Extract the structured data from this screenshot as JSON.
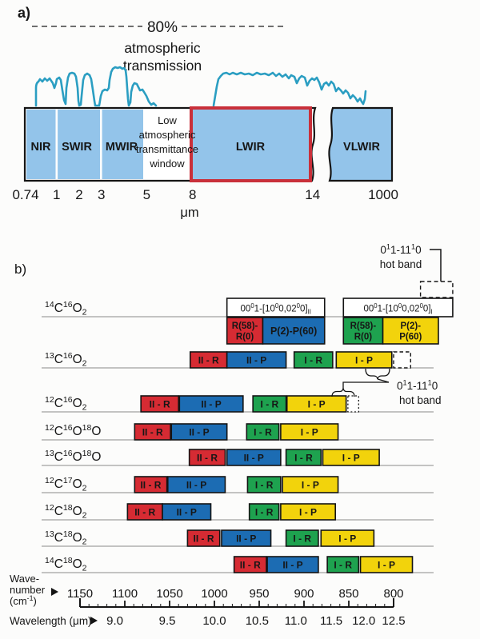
{
  "panel_a": {
    "label": "a)",
    "transmission_note": {
      "percent": "80%",
      "line1": "atmospheric",
      "line2": "transmission"
    },
    "window_note_lines": [
      "Low",
      "atmospheric",
      "transmittance",
      "window"
    ],
    "bands": [
      {
        "name": "NIR",
        "from_um": "0.74",
        "to_um": "1"
      },
      {
        "name": "SWIR",
        "from_um": "1",
        "to_um": "3"
      },
      {
        "name": "MWIR",
        "from_um": "3",
        "to_um": "5"
      },
      {
        "name": "LWIR",
        "from_um": "8",
        "to_um": "14",
        "highlighted": true
      },
      {
        "name": "VLWIR",
        "from_um": "14",
        "to_um": "1000"
      }
    ],
    "low_window_range_um": [
      "5",
      "8"
    ],
    "axis": {
      "ticks": [
        "0.74",
        "1",
        "2",
        "3",
        "5",
        "8",
        "14",
        "1000"
      ],
      "unit": "μm"
    },
    "colors": {
      "band_fill": "#93c4ea",
      "highlight_border": "#c9303a",
      "curve": "#2b9ec2"
    }
  },
  "panel_b": {
    "label": "b)"
  },
  "chart_data": {
    "type": "bar",
    "x_axis": {
      "label_lines": [
        "Wave-",
        "number",
        "(cm^{-1})"
      ],
      "range": [
        1150,
        800
      ],
      "major_ticks": [
        1150,
        1100,
        1050,
        1000,
        950,
        900,
        850,
        800
      ],
      "minor_tick_step": 10
    },
    "x_axis2": {
      "label": "Wavelength (μm)",
      "ticks": [
        "9.0",
        "9.5",
        "10.0",
        "10.5",
        "11.0",
        "11.5",
        "12.0",
        "12.5"
      ]
    },
    "branch_colors": {
      "II-R": "#d62b33",
      "II-P": "#1c6cb3",
      "I-R": "#1ea24f",
      "I-P": "#f2d30c"
    },
    "rows": [
      {
        "formula": "^{14}C^{16}O_{2}",
        "header_boxes": [
          {
            "label": "00^{0}1-[10^{0}0,02^{0}0]_{II}",
            "from": 986,
            "to": 877
          },
          {
            "label": "00^{0}1-[10^{0}0,02^{0}0]_{I}",
            "from": 856,
            "to": 734
          }
        ],
        "bands": [
          {
            "branch": "II-R",
            "lines": [
              "R(58)-",
              "R(0)"
            ],
            "from": 986,
            "to": 946
          },
          {
            "branch": "II-P",
            "lines": [
              "P(2)-P(60)"
            ],
            "from": 946,
            "to": 877
          },
          {
            "branch": "I-R",
            "lines": [
              "R(58)-",
              "R(0)"
            ],
            "from": 856,
            "to": 812
          },
          {
            "branch": "I-P",
            "lines": [
              "P(2)-",
              "P(60)"
            ],
            "from": 812,
            "to": 750
          }
        ],
        "dashed_box": {
          "from": 770,
          "to": 734
        }
      },
      {
        "formula": "^{13}C^{16}O_{2}",
        "bands": [
          {
            "branch": "II-R",
            "lines": [
              "II - R"
            ],
            "from": 1027,
            "to": 986
          },
          {
            "branch": "II-P",
            "lines": [
              "II - P"
            ],
            "from": 986,
            "to": 920
          },
          {
            "branch": "I-R",
            "lines": [
              "I - R"
            ],
            "from": 911,
            "to": 868
          },
          {
            "branch": "I-P",
            "lines": [
              "I - P"
            ],
            "from": 864,
            "to": 802
          }
        ],
        "dashed_ext": {
          "from": 800,
          "to": 781
        }
      },
      {
        "formula": "^{12}C^{16}O_{2}",
        "bands": [
          {
            "branch": "II-R",
            "lines": [
              "II - R"
            ],
            "from": 1082,
            "to": 1040
          },
          {
            "branch": "II-P",
            "lines": [
              "II - P"
            ],
            "from": 1039,
            "to": 968
          },
          {
            "branch": "I-R",
            "lines": [
              "I - R"
            ],
            "from": 957,
            "to": 920
          },
          {
            "branch": "I-P",
            "lines": [
              "I - P"
            ],
            "from": 919,
            "to": 853
          }
        ],
        "dotted_ext": {
          "from": 851,
          "to": 839
        }
      },
      {
        "formula": "^{12}C^{16}O^{18}O",
        "bands": [
          {
            "branch": "II-R",
            "lines": [
              "II - R"
            ],
            "from": 1089,
            "to": 1049
          },
          {
            "branch": "II-P",
            "lines": [
              "II - P"
            ],
            "from": 1048,
            "to": 986
          },
          {
            "branch": "I-R",
            "lines": [
              "I - R"
            ],
            "from": 964,
            "to": 928
          },
          {
            "branch": "I-P",
            "lines": [
              "I - P"
            ],
            "from": 926,
            "to": 862
          }
        ]
      },
      {
        "formula": "^{13}C^{16}O^{18}O",
        "bands": [
          {
            "branch": "II-R",
            "lines": [
              "II - R"
            ],
            "from": 1028,
            "to": 988
          },
          {
            "branch": "II-P",
            "lines": [
              "II - P"
            ],
            "from": 986,
            "to": 926
          },
          {
            "branch": "I-R",
            "lines": [
              "I - R"
            ],
            "from": 920,
            "to": 881
          },
          {
            "branch": "I-P",
            "lines": [
              "I - P"
            ],
            "from": 879,
            "to": 816
          }
        ]
      },
      {
        "formula": "^{12}C^{17}O_{2}",
        "bands": [
          {
            "branch": "II-R",
            "lines": [
              "II - R"
            ],
            "from": 1089,
            "to": 1053
          },
          {
            "branch": "II-P",
            "lines": [
              "II - P"
            ],
            "from": 1052,
            "to": 988
          },
          {
            "branch": "I-R",
            "lines": [
              "I - R"
            ],
            "from": 963,
            "to": 926
          },
          {
            "branch": "I-P",
            "lines": [
              "I - P"
            ],
            "from": 924,
            "to": 862
          }
        ]
      },
      {
        "formula": "^{12}C^{18}O_{2}",
        "bands": [
          {
            "branch": "II-R",
            "lines": [
              "II - R"
            ],
            "from": 1097,
            "to": 1058
          },
          {
            "branch": "II-P",
            "lines": [
              "II - P"
            ],
            "from": 1058,
            "to": 1004
          },
          {
            "branch": "I-R",
            "lines": [
              "I - R"
            ],
            "from": 961,
            "to": 928
          },
          {
            "branch": "I-P",
            "lines": [
              "I - P"
            ],
            "from": 926,
            "to": 865
          }
        ]
      },
      {
        "formula": "^{13}C^{18}O_{2}",
        "bands": [
          {
            "branch": "II-R",
            "lines": [
              "II - R"
            ],
            "from": 1030,
            "to": 994
          },
          {
            "branch": "II-P",
            "lines": [
              "II - P"
            ],
            "from": 992,
            "to": 937
          },
          {
            "branch": "I-R",
            "lines": [
              "I - R"
            ],
            "from": 920,
            "to": 884
          },
          {
            "branch": "I-P",
            "lines": [
              "I - P"
            ],
            "from": 881,
            "to": 822
          }
        ]
      },
      {
        "formula": "^{14}C^{18}O_{2}",
        "bands": [
          {
            "branch": "II-R",
            "lines": [
              "II - R"
            ],
            "from": 978,
            "to": 942
          },
          {
            "branch": "II-P",
            "lines": [
              "II - P"
            ],
            "from": 941,
            "to": 884
          },
          {
            "branch": "I-R",
            "lines": [
              "I - R"
            ],
            "from": 874,
            "to": 839
          },
          {
            "branch": "I-P",
            "lines": [
              "I - P"
            ],
            "from": 837,
            "to": 779
          }
        ]
      }
    ],
    "annotations": {
      "hot_band_top": {
        "line1": "0^{1}1-11^{1}0",
        "line2": "hot band"
      },
      "hot_band_mid": {
        "line1": "0^{1}1-11^{1}0",
        "line2": "hot band"
      }
    }
  }
}
